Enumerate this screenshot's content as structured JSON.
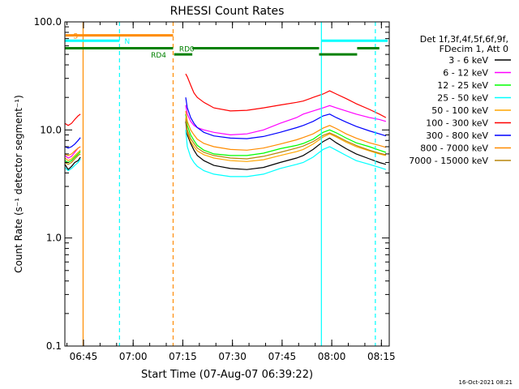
{
  "chart_data": {
    "type": "line",
    "title": "RHESSI Count Rates",
    "xlabel": "Start Time (07-Aug-07 06:39:22)",
    "ylabel": "Count Rate (s⁻¹ detector segment⁻¹)",
    "ylog": true,
    "ylim": [
      0.1,
      100.0
    ],
    "xlim_minutes_from_start": [
      0,
      98
    ],
    "x_tick_labels": [
      "06:45",
      "07:00",
      "07:15",
      "07:30",
      "07:45",
      "08:00",
      "08:15"
    ],
    "x_tick_minutes": [
      5.63,
      20.63,
      35.63,
      50.63,
      65.63,
      80.63,
      95.63
    ],
    "y_tick_labels": [
      "0.1",
      "1.0",
      "10.0",
      "100.0"
    ],
    "y_tick_values": [
      0.1,
      1.0,
      10.0,
      100.0
    ],
    "legend_header": [
      "Det 1f,3f,4f,5f,6f,9f,",
      "FDecim 1, Att 0"
    ],
    "legend_position": "right",
    "timestamp": "16-Oct-2021 08:21",
    "data_gaps_minutes": [
      [
        4.7,
        36.5
      ]
    ],
    "x": [
      0,
      1,
      2,
      3,
      4,
      4.7,
      36.5,
      37,
      38,
      39,
      40,
      42,
      45,
      50,
      55,
      60,
      65,
      70,
      72,
      75,
      78,
      80,
      82,
      85,
      88,
      92,
      95,
      97
    ],
    "series": [
      {
        "name": "3 - 6 keV",
        "color": "#000000",
        "values": [
          4.8,
          4.3,
          4.6,
          5.0,
          5.2,
          5.6,
          12.0,
          9.0,
          7.5,
          6.5,
          5.8,
          5.2,
          4.7,
          4.4,
          4.3,
          4.5,
          5.0,
          5.5,
          5.8,
          6.6,
          7.8,
          8.4,
          7.6,
          6.7,
          6.0,
          5.4,
          5.0,
          4.8
        ]
      },
      {
        "name": "6 - 12 keV",
        "color": "#ff00ff",
        "values": [
          5.8,
          5.5,
          5.7,
          6.2,
          6.8,
          7.0,
          17.0,
          14.0,
          12.0,
          11.0,
          10.5,
          10.0,
          9.5,
          9.0,
          9.2,
          10.0,
          11.5,
          13.0,
          14.0,
          15.0,
          16.0,
          16.8,
          16.0,
          15.0,
          14.0,
          13.0,
          12.5,
          12.0
        ]
      },
      {
        "name": "12 - 25 keV",
        "color": "#00ff00",
        "values": [
          5.2,
          5.0,
          5.2,
          5.6,
          6.0,
          6.3,
          14.0,
          11.0,
          9.0,
          8.0,
          7.2,
          6.5,
          6.0,
          5.8,
          5.8,
          6.1,
          6.7,
          7.2,
          7.5,
          8.2,
          9.5,
          10.0,
          9.4,
          8.4,
          7.6,
          7.0,
          6.5,
          6.2
        ]
      },
      {
        "name": "25 - 50 keV",
        "color": "#00ffff",
        "values": [
          4.5,
          4.2,
          4.4,
          4.7,
          5.0,
          5.4,
          10.0,
          7.0,
          5.6,
          5.0,
          4.6,
          4.2,
          3.9,
          3.7,
          3.7,
          3.9,
          4.4,
          4.8,
          5.0,
          5.6,
          6.6,
          7.0,
          6.5,
          5.8,
          5.2,
          4.8,
          4.5,
          4.3
        ]
      },
      {
        "name": "50 - 100 keV",
        "color": "#ffa500",
        "values": [
          5.5,
          5.2,
          5.4,
          5.8,
          6.2,
          6.5,
          13.0,
          9.5,
          7.8,
          7.0,
          6.4,
          5.9,
          5.5,
          5.2,
          5.1,
          5.3,
          5.8,
          6.3,
          6.6,
          7.4,
          8.6,
          9.2,
          8.6,
          7.7,
          7.0,
          6.4,
          6.0,
          5.8
        ]
      },
      {
        "name": "100 - 300 keV",
        "color": "#ff0000",
        "values": [
          11.5,
          11.0,
          11.5,
          12.5,
          13.5,
          14.0,
          33.0,
          31.0,
          26.0,
          22.0,
          20.0,
          18.0,
          16.0,
          15.0,
          15.2,
          16.0,
          17.0,
          18.0,
          18.5,
          20.0,
          21.5,
          23.0,
          21.5,
          19.5,
          17.5,
          15.5,
          14.0,
          13.0
        ]
      },
      {
        "name": "300 - 800 keV",
        "color": "#0000ff",
        "values": [
          7.0,
          6.8,
          7.0,
          7.4,
          8.0,
          8.5,
          20.0,
          16.0,
          13.0,
          11.5,
          10.5,
          9.5,
          8.8,
          8.4,
          8.3,
          8.7,
          9.5,
          10.5,
          11.0,
          12.0,
          13.5,
          14.0,
          13.0,
          11.8,
          10.8,
          9.8,
          9.2,
          8.8
        ]
      },
      {
        "name": "800 - 7000 keV",
        "color": "#ff8c00",
        "values": [
          6.0,
          5.8,
          6.0,
          6.4,
          6.8,
          7.0,
          15.0,
          12.0,
          10.0,
          9.0,
          8.2,
          7.5,
          7.0,
          6.6,
          6.5,
          6.8,
          7.4,
          8.1,
          8.5,
          9.2,
          10.4,
          11.0,
          10.3,
          9.2,
          8.4,
          7.6,
          7.2,
          6.9
        ]
      },
      {
        "name": "7000 - 15000 keV",
        "color": "#b8860b",
        "values": [
          5.0,
          4.8,
          5.0,
          5.4,
          5.8,
          6.0,
          12.5,
          10.0,
          8.3,
          7.5,
          6.8,
          6.2,
          5.8,
          5.5,
          5.4,
          5.7,
          6.2,
          6.8,
          7.1,
          7.8,
          8.9,
          9.4,
          8.8,
          7.9,
          7.2,
          6.5,
          6.1,
          5.9
        ]
      }
    ],
    "vertical_lines": [
      {
        "minutes": 5.5,
        "color": "#ff8c00",
        "style": "solid"
      },
      {
        "minutes": 16.5,
        "color": "#00ffff",
        "style": "dashed"
      },
      {
        "minutes": 32.7,
        "color": "#ff8c00",
        "style": "dashed"
      },
      {
        "minutes": 77.5,
        "color": "#00ffff",
        "style": "solid"
      },
      {
        "minutes": 93.8,
        "color": "#00ffff",
        "style": "dashed"
      }
    ],
    "state_bars": [
      {
        "label": "S",
        "color": "#ff8c00",
        "value": 75,
        "start": 0.2,
        "end": 32.7,
        "label_at": 2.5
      },
      {
        "label": "N",
        "color": "#00ffff",
        "value": 67,
        "start": 0,
        "end": 16.5,
        "label_at": 18.0
      },
      {
        "label": "",
        "color": "#00ffff",
        "value": 67,
        "start": 77.5,
        "end": 97.5,
        "label_at": null
      },
      {
        "label": "RD0",
        "color": "#008000",
        "value": 57,
        "start": 0,
        "end": 32.7,
        "label_at": 34.5
      },
      {
        "label": "",
        "color": "#008000",
        "value": 57,
        "start": 38.5,
        "end": 76.8,
        "label_at": null
      },
      {
        "label": "",
        "color": "#008000",
        "value": 57,
        "start": 88.3,
        "end": 95.0,
        "label_at": null
      },
      {
        "label": "RD4",
        "color": "#008000",
        "value": 50,
        "start": 33.0,
        "end": 38.5,
        "label_at": 26.0
      },
      {
        "label": "",
        "color": "#008000",
        "value": 50,
        "start": 76.8,
        "end": 88.3,
        "label_at": null
      }
    ]
  }
}
